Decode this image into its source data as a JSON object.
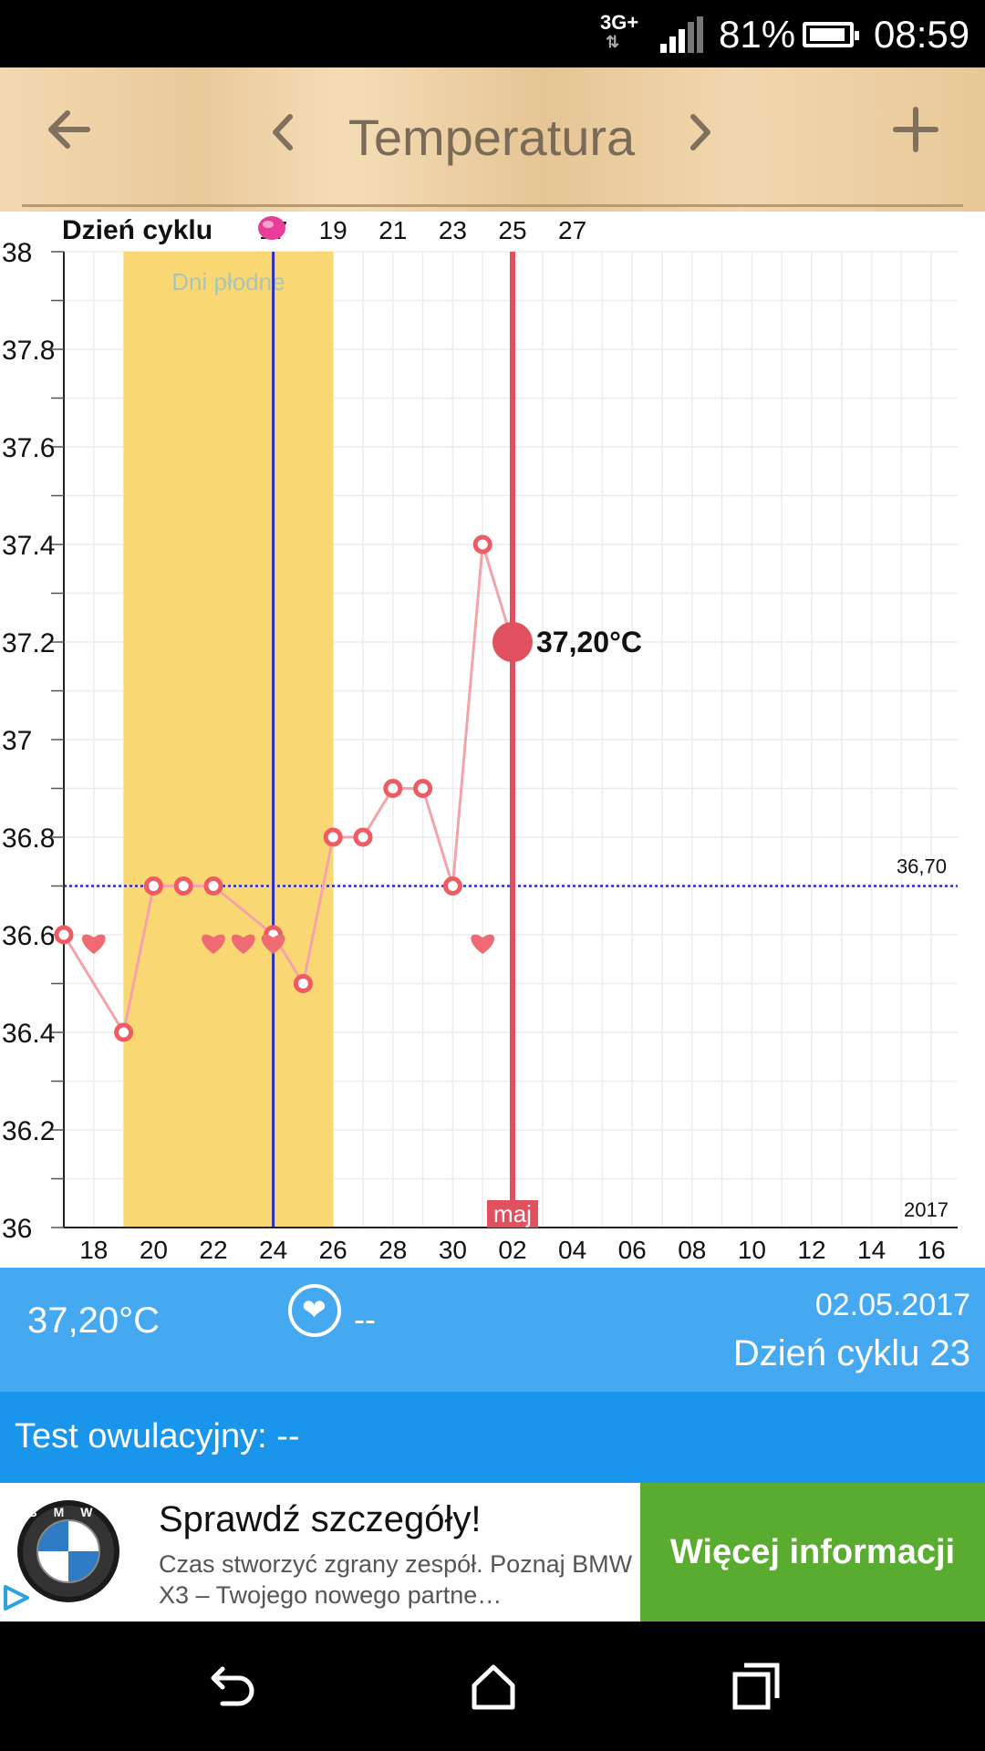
{
  "status_bar": {
    "network": "3G+",
    "battery_percent": "81%",
    "time": "08:59",
    "icons": [
      "network-arrows-icon",
      "signal-icon",
      "battery-icon"
    ]
  },
  "toolbar": {
    "title": "Temperatura",
    "icons": [
      "back-arrow-icon",
      "chevron-left-icon",
      "chevron-right-icon",
      "plus-icon"
    ]
  },
  "chart": {
    "cycle_label": "Dzień cyklu",
    "fertile_label": "Dni płodne",
    "current_label": "37,20°C",
    "reference_label": "36,70",
    "year_label": "2017",
    "month_label": "maj"
  },
  "chart_data": {
    "type": "line",
    "xlabel": "",
    "ylabel": "",
    "ylim": [
      36,
      38
    ],
    "y_ticks": [
      "36",
      "36.2",
      "36.4",
      "36.6",
      "36.8",
      "37",
      "37.2",
      "37.4",
      "37.6",
      "37.8",
      "38"
    ],
    "x_ticks": [
      "18",
      "20",
      "22",
      "24",
      "26",
      "28",
      "30",
      "02",
      "04",
      "06",
      "08",
      "10",
      "12",
      "14",
      "16"
    ],
    "cycle_day_ticks": [
      "17",
      "19",
      "21",
      "23",
      "25",
      "27"
    ],
    "series": [
      {
        "x": [
          "17.04",
          "19.04",
          "20.04",
          "21.04",
          "22.04",
          "24.04",
          "25.04",
          "26.04",
          "27.04",
          "28.04",
          "29.04",
          "30.04",
          "01.05",
          "02.05"
        ],
        "values": [
          36.6,
          36.4,
          36.7,
          36.7,
          36.7,
          36.6,
          36.5,
          36.8,
          36.8,
          36.9,
          36.9,
          36.7,
          37.4,
          37.2
        ]
      }
    ],
    "reference_line": 36.7,
    "fertile_window": [
      "19.04",
      "26.04"
    ],
    "ovulation_day": "24.04",
    "current_day": "02.05",
    "intercourse_days": [
      "18.04",
      "22.04",
      "23.04",
      "24.04",
      "01.05"
    ],
    "grid": true,
    "colors": {
      "line": "#f4a3a8",
      "marker": "#ef5a63",
      "current": "#e0505e",
      "fertile": "#f9d873",
      "ovulation": "#2b2dc8",
      "reference": "#2b2dc8",
      "heart": "#ef6a73"
    }
  },
  "info": {
    "temperature": "37,20°C",
    "heart_value": "--",
    "date": "02.05.2017",
    "cycle_day": "Dzień cyklu 23"
  },
  "ovulation_test": {
    "label": "Test owulacyjny: --"
  },
  "ad": {
    "headline": "Sprawdź szczegóły!",
    "description": "Czas stworzyć zgrany zespół. Poznaj BMW X3 – Twojego nowego partne…",
    "cta": "Więcej informacji",
    "logo_letters": "BMW"
  },
  "nav_bar": {
    "icons": [
      "nav-back-icon",
      "nav-home-icon",
      "nav-recent-icon"
    ]
  }
}
